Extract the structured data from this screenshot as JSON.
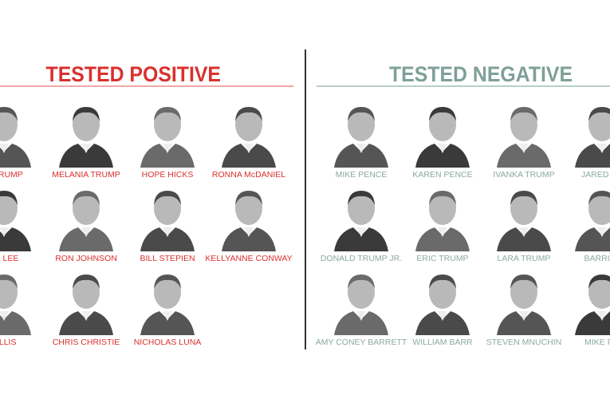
{
  "colors": {
    "positive": "#d9312f",
    "positive_rule": "#f0a8a8",
    "negative": "#7f9f98",
    "negative_rule": "#b8cfca",
    "divider": "#333333"
  },
  "positive": {
    "title": "TESTED POSITIVE",
    "people": [
      [
        "D TRUMP",
        "MELANIA TRUMP",
        "HOPE HICKS",
        "RONNA McDANIEL"
      ],
      [
        "KE LEE",
        "RON JOHNSON",
        "BILL STEPIEN",
        "KELLYANNE CONWAY"
      ],
      [
        "TILLIS",
        "CHRIS CHRISTIE",
        "NICHOLAS LUNA"
      ]
    ]
  },
  "negative": {
    "title": "TESTED NEGATIVE",
    "people": [
      [
        "MIKE PENCE",
        "KAREN PENCE",
        "IVANKA TRUMP",
        "JARED KU"
      ],
      [
        "DONALD TRUMP JR.",
        "ERIC TRUMP",
        "LARA TRUMP",
        "BARRON"
      ],
      [
        "AMY CONEY BARRETT",
        "WILLIAM BARR",
        "STEVEN MNUCHIN",
        "MIKE PO"
      ]
    ]
  }
}
